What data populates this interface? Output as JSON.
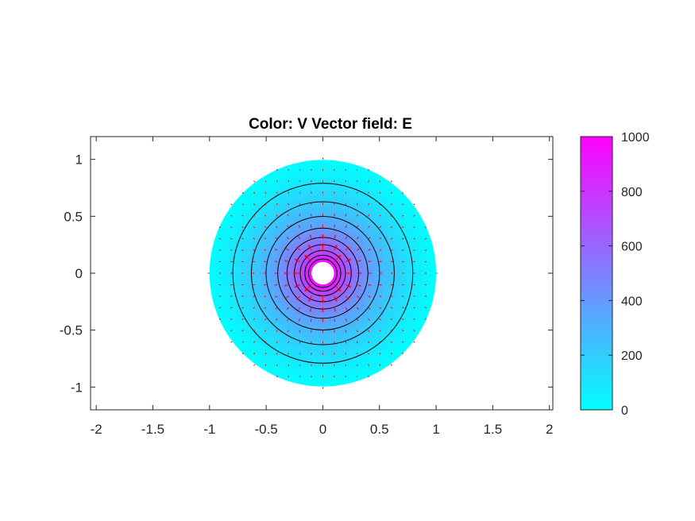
{
  "chart_data": {
    "type": "heatmap",
    "title": "Color: V  Vector field: E",
    "xlabel": "",
    "ylabel": "",
    "xlim": [
      -2.05,
      2.03
    ],
    "ylim": [
      -1.2,
      1.2
    ],
    "xticks": [
      -2,
      -1.5,
      -1,
      -0.5,
      0,
      0.5,
      1,
      1.5,
      2
    ],
    "xtick_labels": [
      "-2",
      "-1.5",
      "-1",
      "-0.5",
      "0",
      "0.5",
      "1",
      "1.5",
      "2"
    ],
    "yticks": [
      1,
      0.5,
      0,
      -0.5,
      -1
    ],
    "ytick_labels": [
      "1",
      "0.5",
      "0",
      "-0.5",
      "-1"
    ],
    "grid": false,
    "domain": {
      "shape": "annulus",
      "center": [
        0,
        0
      ],
      "inner_radius": 0.1,
      "outer_radius": 1.0
    },
    "potential": {
      "inner_value": 1000,
      "outer_value": 0,
      "profile": "logarithmic"
    },
    "contour_levels": [
      100,
      200,
      300,
      400,
      500,
      600,
      700,
      800,
      900
    ],
    "contour_color": "#000000",
    "vector_field": {
      "name": "E",
      "color": "#ff0000",
      "direction": "radial-outward",
      "grid_spacing": 0.1
    },
    "colorbar": {
      "position": "right",
      "limits": [
        0,
        1000
      ],
      "ticks": [
        0,
        200,
        400,
        600,
        800,
        1000
      ],
      "tick_labels": [
        "0",
        "200",
        "400",
        "600",
        "800",
        "1000"
      ],
      "colormap": "cool",
      "color_low": "#00ffff",
      "color_high": "#ff00ff"
    }
  }
}
